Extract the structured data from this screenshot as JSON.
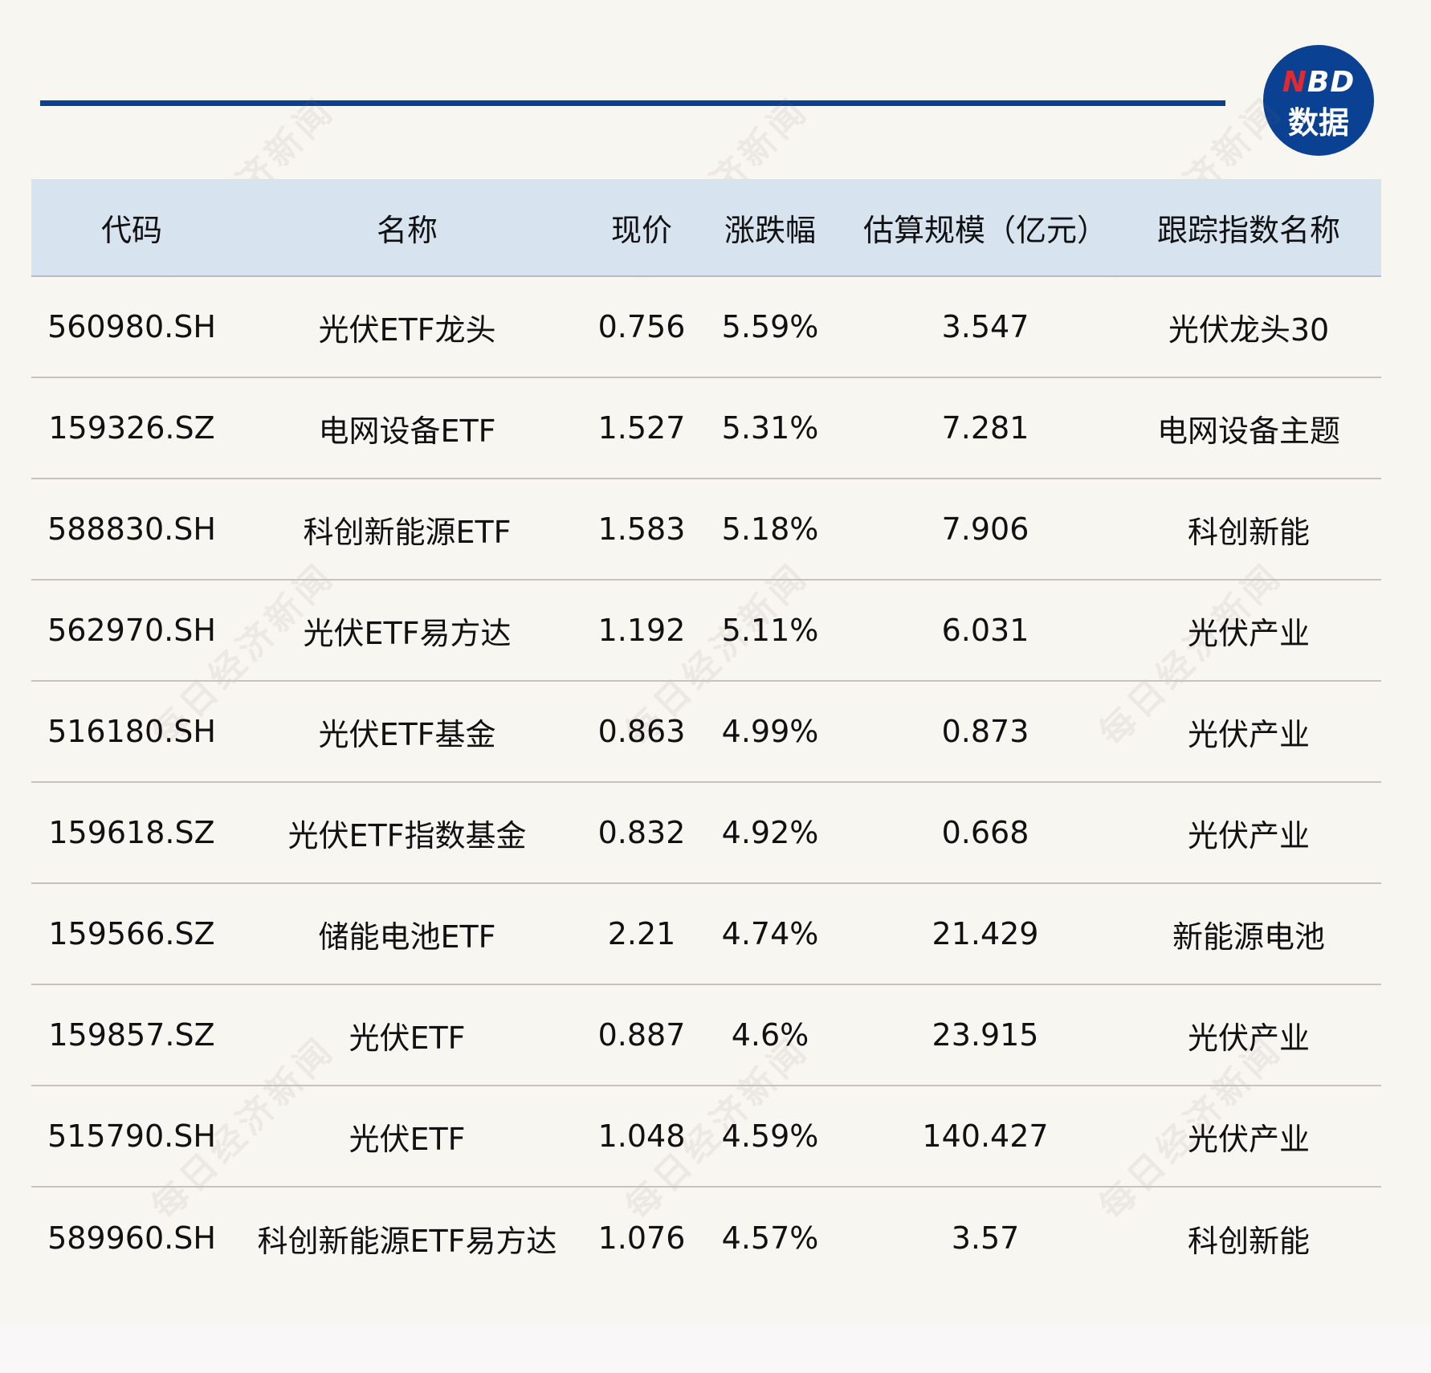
{
  "logo": {
    "n": "N",
    "bd": "BD",
    "sub": "数据"
  },
  "watermark": "每日经济新闻",
  "colors": {
    "accent": "#0d3f91",
    "header_bg": "#d7e4ef",
    "logo_red": "#e02a32"
  },
  "table": {
    "headers": [
      "代码",
      "名称",
      "现价",
      "涨跌幅",
      "估算规模（亿元）",
      "跟踪指数名称"
    ],
    "rows": [
      [
        "560980.SH",
        "光伏ETF龙头",
        "0.756",
        "5.59%",
        "3.547",
        "光伏龙头30"
      ],
      [
        "159326.SZ",
        "电网设备ETF",
        "1.527",
        "5.31%",
        "7.281",
        "电网设备主题"
      ],
      [
        "588830.SH",
        "科创新能源ETF",
        "1.583",
        "5.18%",
        "7.906",
        "科创新能"
      ],
      [
        "562970.SH",
        "光伏ETF易方达",
        "1.192",
        "5.11%",
        "6.031",
        "光伏产业"
      ],
      [
        "516180.SH",
        "光伏ETF基金",
        "0.863",
        "4.99%",
        "0.873",
        "光伏产业"
      ],
      [
        "159618.SZ",
        "光伏ETF指数基金",
        "0.832",
        "4.92%",
        "0.668",
        "光伏产业"
      ],
      [
        "159566.SZ",
        "储能电池ETF",
        "2.21",
        "4.74%",
        "21.429",
        "新能源电池"
      ],
      [
        "159857.SZ",
        "光伏ETF",
        "0.887",
        "4.6%",
        "23.915",
        "光伏产业"
      ],
      [
        "515790.SH",
        "光伏ETF",
        "1.048",
        "4.59%",
        "140.427",
        "光伏产业"
      ],
      [
        "589960.SH",
        "科创新能源ETF易方达",
        "1.076",
        "4.57%",
        "3.57",
        "科创新能"
      ]
    ]
  }
}
